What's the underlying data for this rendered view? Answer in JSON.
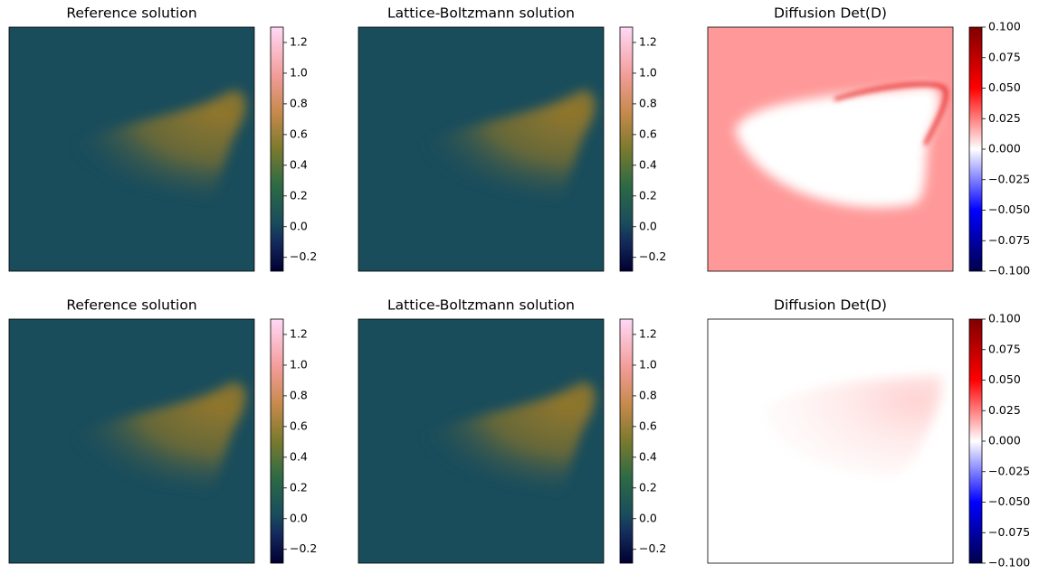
{
  "chart_data": [
    {
      "type": "image",
      "title": "Reference solution",
      "colormap": "cubehelix",
      "clim": [
        -0.29,
        1.3
      ],
      "ticks": [
        {
          "value": -0.2,
          "label": "−0.2"
        },
        {
          "value": 0,
          "label": "0.0"
        },
        0.2,
        0.4,
        0.6,
        0.8,
        {
          "value": 1,
          "label": "1.0"
        },
        1.2
      ]
    },
    {
      "type": "image",
      "title": "Lattice-Boltzmann solution",
      "colormap": "cubehelix",
      "clim": [
        -0.29,
        1.3
      ],
      "ticks": [
        {
          "value": -0.2,
          "label": "−0.2"
        },
        {
          "value": 0,
          "label": "0.0"
        },
        0.2,
        0.4,
        0.6,
        0.8,
        {
          "value": 1,
          "label": "1.0"
        },
        1.2
      ]
    },
    {
      "type": "image",
      "title": "Diffusion Det(D)",
      "colormap": "seismic",
      "clim": [
        -0.1,
        0.1
      ],
      "ticks": [
        {
          "value": -0.1,
          "label": "−0.100"
        },
        {
          "value": -0.075,
          "label": "−0.075"
        },
        {
          "value": -0.05,
          "label": "−0.050"
        },
        {
          "value": -0.025,
          "label": "−0.025"
        },
        {
          "value": 0,
          "label": "0.000"
        },
        0.025,
        {
          "value": 0.05,
          "label": "0.050"
        },
        0.075,
        {
          "value": 0.1,
          "label": "0.100"
        }
      ]
    },
    {
      "type": "image",
      "title": "Reference solution",
      "colormap": "cubehelix",
      "clim": [
        -0.29,
        1.3
      ],
      "ticks": [
        {
          "value": -0.2,
          "label": "−0.2"
        },
        {
          "value": 0,
          "label": "0.0"
        },
        0.2,
        0.4,
        0.6,
        0.8,
        {
          "value": 1,
          "label": "1.0"
        },
        1.2
      ]
    },
    {
      "type": "image",
      "title": "Lattice-Boltzmann solution",
      "colormap": "cubehelix",
      "clim": [
        -0.29,
        1.3
      ],
      "ticks": [
        {
          "value": -0.2,
          "label": "−0.2"
        },
        {
          "value": 0,
          "label": "0.0"
        },
        0.2,
        0.4,
        0.6,
        0.8,
        {
          "value": 1,
          "label": "1.0"
        },
        1.2
      ]
    },
    {
      "type": "image",
      "title": "Diffusion Det(D)",
      "colormap": "seismic",
      "clim": [
        -0.1,
        0.1
      ],
      "ticks": [
        {
          "value": -0.1,
          "label": "−0.100"
        },
        {
          "value": -0.075,
          "label": "−0.075"
        },
        {
          "value": -0.05,
          "label": "−0.050"
        },
        {
          "value": -0.025,
          "label": "−0.025"
        },
        {
          "value": 0,
          "label": "0.000"
        },
        0.025,
        {
          "value": 0.05,
          "label": "0.050"
        },
        0.075,
        {
          "value": 0.1,
          "label": "0.100"
        }
      ]
    }
  ]
}
